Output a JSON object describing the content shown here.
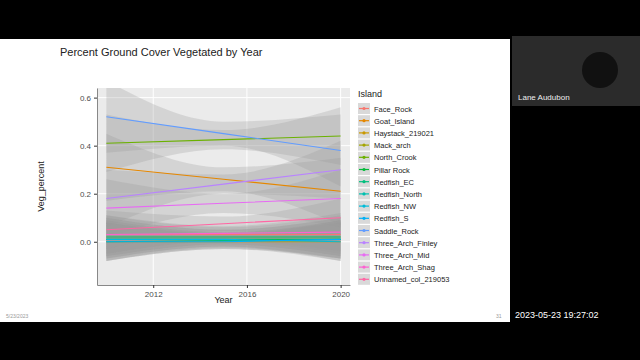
{
  "chart_data": {
    "type": "line",
    "title": "Percent Ground Cover Vegetated by Year",
    "x_label": "Year",
    "y_label": "Veg_percent",
    "legend_title": "Island",
    "legend": "right",
    "grid": true,
    "x": [
      2010,
      2015,
      2020
    ],
    "xlim": [
      2009.6,
      2020.4
    ],
    "xticks": [
      2012,
      2016,
      2020
    ],
    "ylim": [
      -0.18,
      0.64
    ],
    "yticks": [
      {
        "value": 0,
        "label": "0.0"
      },
      0.2,
      0.4,
      0.6
    ],
    "series": [
      {
        "name": "Face_Rock",
        "color": "#F8766D",
        "values": [
          0.03,
          0.03,
          0.03
        ],
        "lower": [
          -0.05,
          0.0,
          -0.05
        ],
        "upper": [
          0.11,
          0.06,
          0.11
        ]
      },
      {
        "name": "Goat_Island",
        "color": "#E58700",
        "values": [
          0.31,
          0.26,
          0.21
        ],
        "lower": [
          0.17,
          0.21,
          0.07
        ],
        "upper": [
          0.45,
          0.31,
          0.35
        ]
      },
      {
        "name": "Haystack_219021",
        "color": "#C99800",
        "values": [
          0.0,
          0.0,
          0.0
        ],
        "lower": [
          -0.08,
          -0.03,
          -0.08
        ],
        "upper": [
          0.08,
          0.03,
          0.08
        ]
      },
      {
        "name": "Mack_arch",
        "color": "#A3A500",
        "values": [
          0.02,
          0.02,
          0.02
        ],
        "lower": [
          -0.06,
          -0.01,
          -0.06
        ],
        "upper": [
          0.1,
          0.05,
          0.1
        ]
      },
      {
        "name": "North_Crook",
        "color": "#6BB100",
        "values": [
          0.41,
          0.425,
          0.44
        ],
        "lower": [
          0.29,
          0.385,
          0.32
        ],
        "upper": [
          0.53,
          0.465,
          0.56
        ]
      },
      {
        "name": "Pillar Rock",
        "color": "#00BA38",
        "values": [
          0.01,
          0.01,
          0.01
        ],
        "lower": [
          -0.07,
          -0.02,
          -0.07
        ],
        "upper": [
          0.09,
          0.04,
          0.09
        ]
      },
      {
        "name": "Redfish_EC",
        "color": "#00BF7D",
        "values": [
          0.0,
          0.005,
          0.01
        ],
        "lower": [
          -0.08,
          -0.025,
          -0.07
        ],
        "upper": [
          0.08,
          0.035,
          0.09
        ]
      },
      {
        "name": "Redfish_North",
        "color": "#00C0AF",
        "values": [
          0.02,
          0.02,
          0.02
        ],
        "lower": [
          -0.06,
          -0.01,
          -0.06
        ],
        "upper": [
          0.1,
          0.05,
          0.1
        ]
      },
      {
        "name": "Redfish_NW",
        "color": "#00BCD8",
        "values": [
          0.01,
          0.01,
          0.0
        ],
        "lower": [
          -0.07,
          -0.02,
          -0.08
        ],
        "upper": [
          0.09,
          0.04,
          0.08
        ]
      },
      {
        "name": "Redfish_S",
        "color": "#00B0F6",
        "values": [
          0.0,
          0.0,
          0.01
        ],
        "lower": [
          -0.08,
          -0.03,
          -0.07
        ],
        "upper": [
          0.08,
          0.03,
          0.09
        ]
      },
      {
        "name": "Saddle_Rock",
        "color": "#619CFF",
        "values": [
          0.52,
          0.45,
          0.38
        ],
        "lower": [
          0.37,
          0.4,
          0.23
        ],
        "upper": [
          0.67,
          0.5,
          0.53
        ]
      },
      {
        "name": "Three_Arch_Finley",
        "color": "#B983FF",
        "values": [
          0.18,
          0.24,
          0.3
        ],
        "lower": [
          0.06,
          0.2,
          0.18
        ],
        "upper": [
          0.3,
          0.28,
          0.42
        ]
      },
      {
        "name": "Three_Arch_Mid",
        "color": "#E76BF3",
        "values": [
          0.14,
          0.16,
          0.18
        ],
        "lower": [
          0.02,
          0.12,
          0.06
        ],
        "upper": [
          0.26,
          0.2,
          0.3
        ]
      },
      {
        "name": "Three_Arch_Shag",
        "color": "#FD61D1",
        "values": [
          0.03,
          0.035,
          0.04
        ],
        "lower": [
          -0.05,
          0.005,
          -0.04
        ],
        "upper": [
          0.11,
          0.065,
          0.12
        ]
      },
      {
        "name": "Unnamed_col_219053",
        "color": "#FF67A4",
        "values": [
          0.05,
          0.075,
          0.1
        ],
        "lower": [
          -0.03,
          0.045,
          0.02
        ],
        "upper": [
          0.13,
          0.105,
          0.18
        ]
      }
    ]
  },
  "screen": {
    "speaker": "Lane Audubon",
    "timestamp": "2023-05-23 19:27:02",
    "slide_date": "5/23/2023",
    "slide_number": "31"
  }
}
